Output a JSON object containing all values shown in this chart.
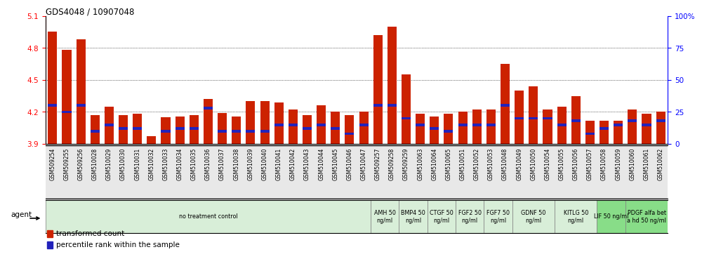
{
  "title": "GDS4048 / 10907048",
  "samples": [
    "GSM509254",
    "GSM509255",
    "GSM509256",
    "GSM510028",
    "GSM510029",
    "GSM510030",
    "GSM510031",
    "GSM510032",
    "GSM510033",
    "GSM510034",
    "GSM510035",
    "GSM510036",
    "GSM510037",
    "GSM510038",
    "GSM510039",
    "GSM510040",
    "GSM510041",
    "GSM510042",
    "GSM510043",
    "GSM510044",
    "GSM510045",
    "GSM510046",
    "GSM510047",
    "GSM509257",
    "GSM509258",
    "GSM509259",
    "GSM510063",
    "GSM510064",
    "GSM510065",
    "GSM510051",
    "GSM510052",
    "GSM510053",
    "GSM510048",
    "GSM510049",
    "GSM510050",
    "GSM510054",
    "GSM510055",
    "GSM510056",
    "GSM510057",
    "GSM510058",
    "GSM510059",
    "GSM510060",
    "GSM510061",
    "GSM510062"
  ],
  "red_values": [
    4.95,
    4.78,
    4.88,
    4.17,
    4.25,
    4.17,
    4.18,
    3.97,
    4.15,
    4.16,
    4.17,
    4.32,
    4.19,
    4.16,
    4.3,
    4.3,
    4.29,
    4.22,
    4.17,
    4.26,
    4.2,
    4.17,
    4.2,
    4.92,
    5.0,
    4.55,
    4.18,
    4.16,
    4.18,
    4.2,
    4.22,
    4.22,
    4.65,
    4.4,
    4.44,
    4.22,
    4.25,
    4.35,
    4.12,
    4.12,
    4.12,
    4.22,
    4.18,
    4.2
  ],
  "blue_values": [
    30,
    25,
    30,
    10,
    15,
    12,
    12,
    8,
    10,
    12,
    12,
    28,
    10,
    10,
    10,
    10,
    15,
    15,
    12,
    15,
    12,
    8,
    15,
    30,
    30,
    20,
    15,
    12,
    10,
    15,
    15,
    15,
    30,
    20,
    20,
    20,
    15,
    18,
    8,
    12,
    15,
    18,
    15,
    18
  ],
  "ylim_left": [
    3.9,
    5.1
  ],
  "ylim_right": [
    0,
    100
  ],
  "yticks_left": [
    3.9,
    4.2,
    4.5,
    4.8,
    5.1
  ],
  "yticks_right": [
    0,
    25,
    50,
    75,
    100
  ],
  "bar_color_red": "#cc2200",
  "bar_color_blue": "#2222bb",
  "agent_groups": [
    {
      "label": "no treatment control",
      "start": 0,
      "end": 23,
      "color": "#d8eed8"
    },
    {
      "label": "AMH 50\nng/ml",
      "start": 23,
      "end": 25,
      "color": "#d8eed8"
    },
    {
      "label": "BMP4 50\nng/ml",
      "start": 25,
      "end": 27,
      "color": "#d8eed8"
    },
    {
      "label": "CTGF 50\nng/ml",
      "start": 27,
      "end": 29,
      "color": "#d8eed8"
    },
    {
      "label": "FGF2 50\nng/ml",
      "start": 29,
      "end": 31,
      "color": "#d8eed8"
    },
    {
      "label": "FGF7 50\nng/ml",
      "start": 31,
      "end": 33,
      "color": "#d8eed8"
    },
    {
      "label": "GDNF 50\nng/ml",
      "start": 33,
      "end": 36,
      "color": "#d8eed8"
    },
    {
      "label": "KITLG 50\nng/ml",
      "start": 36,
      "end": 39,
      "color": "#d8eed8"
    },
    {
      "label": "LIF 50 ng/ml",
      "start": 39,
      "end": 41,
      "color": "#88dd88"
    },
    {
      "label": "PDGF alfa bet\na hd 50 ng/ml",
      "start": 41,
      "end": 44,
      "color": "#88dd88"
    }
  ],
  "bar_width": 0.65,
  "background_color": "#ffffff"
}
